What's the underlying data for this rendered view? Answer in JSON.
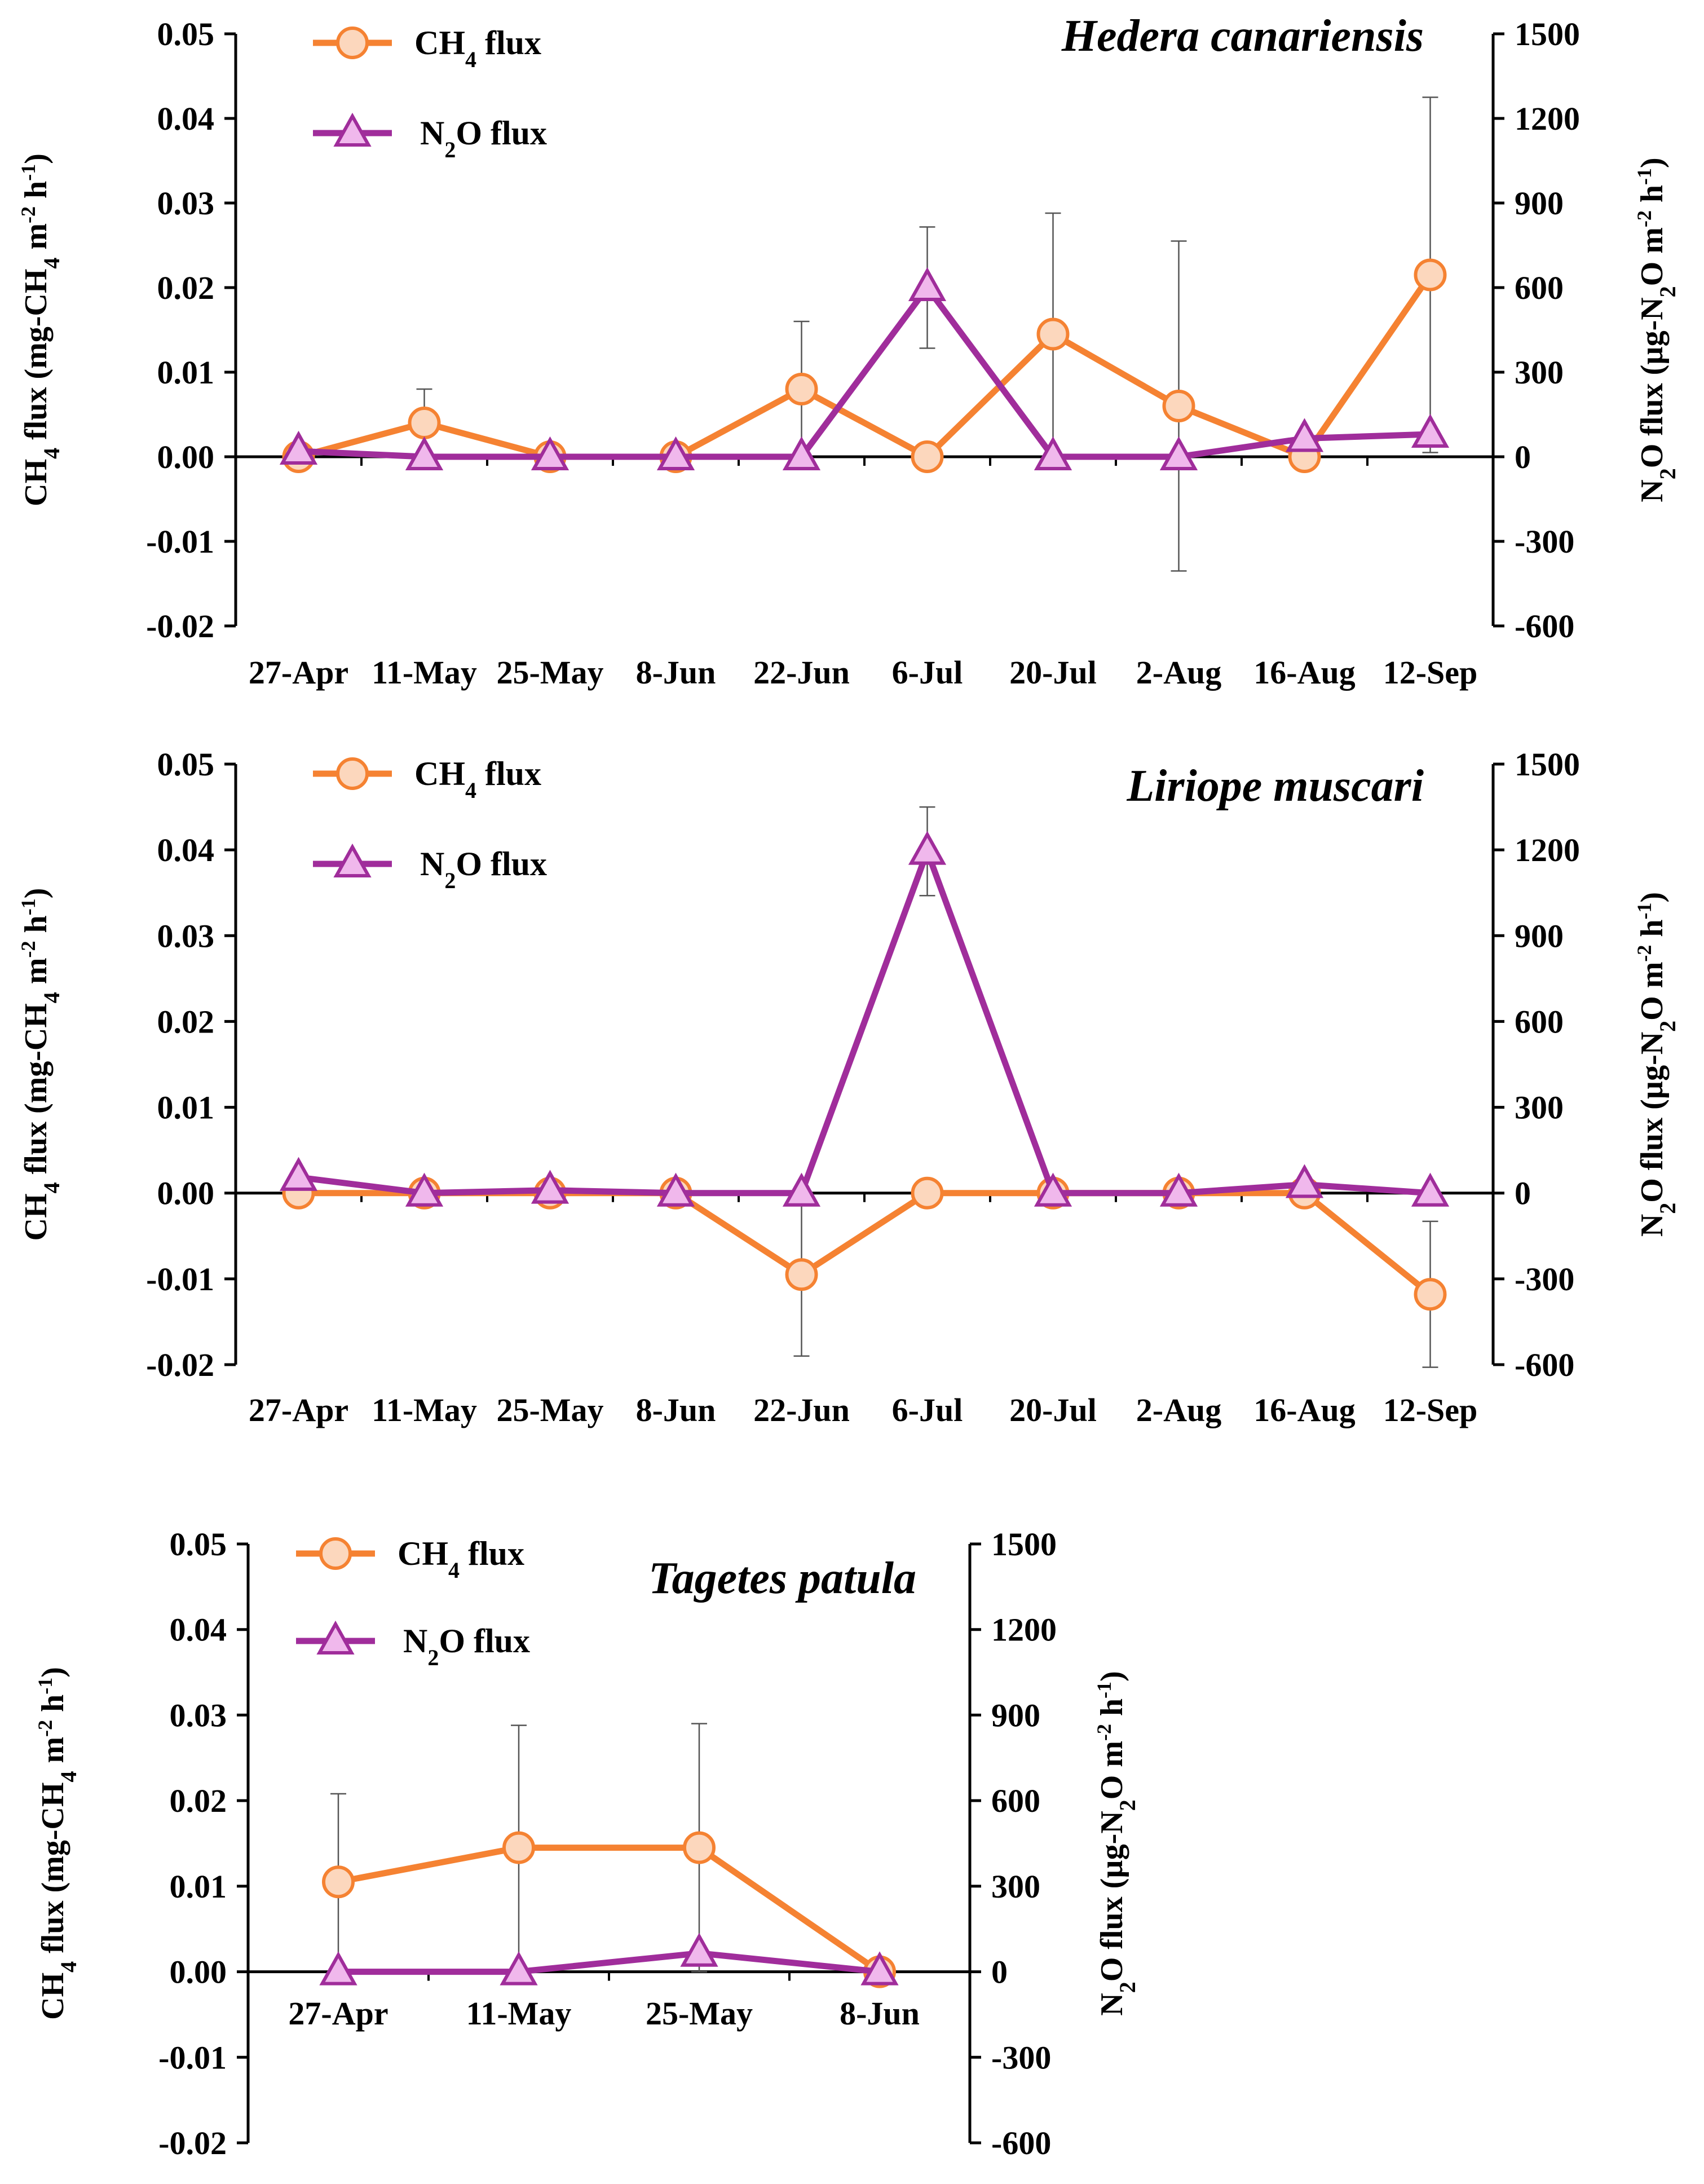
{
  "colors": {
    "ch4_line": "#f58232",
    "ch4_marker_fill": "#fcd7bd",
    "n2o_line": "#a02d9b",
    "n2o_marker_fill": "#f0b8ec",
    "axis": "#000000",
    "error_bar": "#555555"
  },
  "legend": {
    "ch4_label_parts": [
      "CH",
      "4",
      " flux"
    ],
    "n2o_label_parts": [
      "N",
      "2",
      "O flux"
    ]
  },
  "axis_titles": {
    "left_parts": [
      "CH",
      "4",
      " flux (mg-CH",
      "4",
      " m",
      "-2",
      " h",
      "-1",
      ")"
    ],
    "right_parts": [
      "N",
      "2",
      "O flux (µg-N",
      "2",
      "O m",
      "-2",
      " h",
      "-1",
      ")"
    ]
  },
  "chart_data": [
    {
      "type": "line",
      "title": "Hedera canariensis",
      "categories": [
        "27-Apr",
        "11-May",
        "25-May",
        "8-Jun",
        "22-Jun",
        "6-Jul",
        "20-Jul",
        "2-Aug",
        "16-Aug",
        "12-Sep"
      ],
      "ylim_left": [
        -0.02,
        0.05
      ],
      "yticks_left": [
        "0.05",
        "0.04",
        "0.03",
        "0.02",
        "0.01",
        "0.00",
        "-0.01",
        "-0.02"
      ],
      "ylim_right": [
        -600,
        1500
      ],
      "yticks_right": [
        "1500",
        "1200",
        "900",
        "600",
        "300",
        "0",
        "-300",
        "-600"
      ],
      "series": [
        {
          "name": "CH4 flux",
          "axis": "left",
          "values": [
            0.0,
            0.004,
            0.0,
            0.0,
            0.008,
            0.0,
            0.0145,
            0.006,
            0.0,
            0.0215
          ],
          "error": [
            0,
            0.004,
            0,
            0,
            0.008,
            0,
            0.0143,
            0.0195,
            0,
            0.021
          ]
        },
        {
          "name": "N2O flux",
          "axis": "right",
          "values": [
            20,
            0,
            0,
            0,
            0,
            600,
            0,
            0,
            65,
            80
          ],
          "error": [
            0,
            0,
            0,
            0,
            0,
            215,
            0,
            0,
            0,
            0
          ]
        }
      ]
    },
    {
      "type": "line",
      "title": "Liriope muscari",
      "categories": [
        "27-Apr",
        "11-May",
        "25-May",
        "8-Jun",
        "22-Jun",
        "6-Jul",
        "20-Jul",
        "2-Aug",
        "16-Aug",
        "12-Sep"
      ],
      "ylim_left": [
        -0.02,
        0.05
      ],
      "yticks_left": [
        "0.05",
        "0.04",
        "0.03",
        "0.02",
        "0.01",
        "0.00",
        "-0.01",
        "-0.02"
      ],
      "ylim_right": [
        -600,
        1500
      ],
      "yticks_right": [
        "1500",
        "1200",
        "900",
        "600",
        "300",
        "0",
        "-300",
        "-600"
      ],
      "series": [
        {
          "name": "CH4 flux",
          "axis": "left",
          "values": [
            0.0,
            0.0,
            0.0,
            0.0,
            -0.0095,
            0.0,
            0.0,
            0.0,
            0.0,
            -0.0118
          ],
          "error": [
            0,
            0,
            0,
            0,
            0.0095,
            0,
            0,
            0,
            0,
            0.0085
          ]
        },
        {
          "name": "N2O flux",
          "axis": "right",
          "values": [
            55,
            0,
            10,
            0,
            0,
            1195,
            0,
            0,
            30,
            0
          ],
          "error": [
            0,
            0,
            0,
            0,
            0,
            155,
            0,
            0,
            0,
            0
          ]
        }
      ]
    },
    {
      "type": "line",
      "title": "Tagetes patula",
      "categories": [
        "27-Apr",
        "11-May",
        "25-May",
        "8-Jun"
      ],
      "ylim_left": [
        -0.02,
        0.05
      ],
      "yticks_left": [
        "0.05",
        "0.04",
        "0.03",
        "0.02",
        "0.01",
        "0.00",
        "-0.01",
        "-0.02"
      ],
      "ylim_right": [
        -600,
        1500
      ],
      "yticks_right": [
        "1500",
        "1200",
        "900",
        "600",
        "300",
        "0",
        "-300",
        "-600"
      ],
      "series": [
        {
          "name": "CH4 flux",
          "axis": "left",
          "values": [
            0.0105,
            0.0145,
            0.0145,
            0.0
          ],
          "error": [
            0.0103,
            0.0143,
            0.0145,
            0
          ]
        },
        {
          "name": "N2O flux",
          "axis": "right",
          "values": [
            0,
            0,
            65,
            0
          ],
          "error": [
            0,
            0,
            0,
            0
          ]
        }
      ]
    }
  ]
}
